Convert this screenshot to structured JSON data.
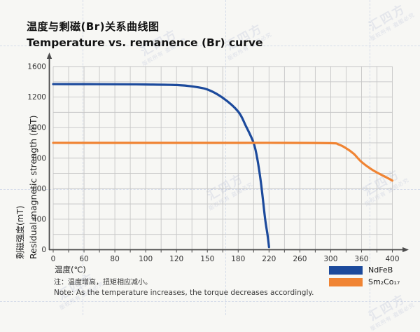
{
  "watermark": {
    "text": "汇四方",
    "notice": "版权所有 盗图必究"
  },
  "chart_data": {
    "type": "line",
    "title_zh": "温度与剩磁(Br)关系曲线图",
    "title_en": "Temperature vs. remanence (Br) curve",
    "xlabel": "温度(℃)",
    "ylabel_zh": "剩磁强度(mT)",
    "ylabel_en": "Residual magnetic strength (mT)",
    "x_ticks": [
      0,
      60,
      80,
      100,
      120,
      150,
      180,
      220,
      260,
      300,
      360,
      400
    ],
    "y_ticks": [
      1600,
      1200,
      1000,
      800,
      600,
      400,
      0
    ],
    "tick_spacing": "uniform",
    "grid": true,
    "legend_position": "bottom-right",
    "axis_color": "#4c4c4c",
    "grid_color": "#c6c6c6",
    "note_zh": "注：温度增高，扭矩相应减小。",
    "note_en": "Note: As the temperature increases, the torque decreases accordingly.",
    "series": [
      {
        "name": "NdFeB",
        "color": "#1c4a9c",
        "points": [
          [
            0,
            1370
          ],
          [
            40,
            1370
          ],
          [
            80,
            1368
          ],
          [
            100,
            1365
          ],
          [
            120,
            1358
          ],
          [
            135,
            1340
          ],
          [
            150,
            1300
          ],
          [
            165,
            1195
          ],
          [
            180,
            1105
          ],
          [
            190,
            1010
          ],
          [
            200,
            900
          ],
          [
            205,
            790
          ],
          [
            210,
            620
          ],
          [
            215,
            400
          ],
          [
            218,
            200
          ],
          [
            220,
            35
          ]
        ]
      },
      {
        "name": "Sm₂Co₁₇",
        "color": "#f08433",
        "points": [
          [
            0,
            900
          ],
          [
            60,
            900
          ],
          [
            120,
            900
          ],
          [
            180,
            900
          ],
          [
            240,
            900
          ],
          [
            300,
            898
          ],
          [
            315,
            890
          ],
          [
            330,
            865
          ],
          [
            345,
            828
          ],
          [
            360,
            775
          ],
          [
            375,
            720
          ],
          [
            390,
            680
          ],
          [
            400,
            653
          ]
        ]
      }
    ]
  }
}
